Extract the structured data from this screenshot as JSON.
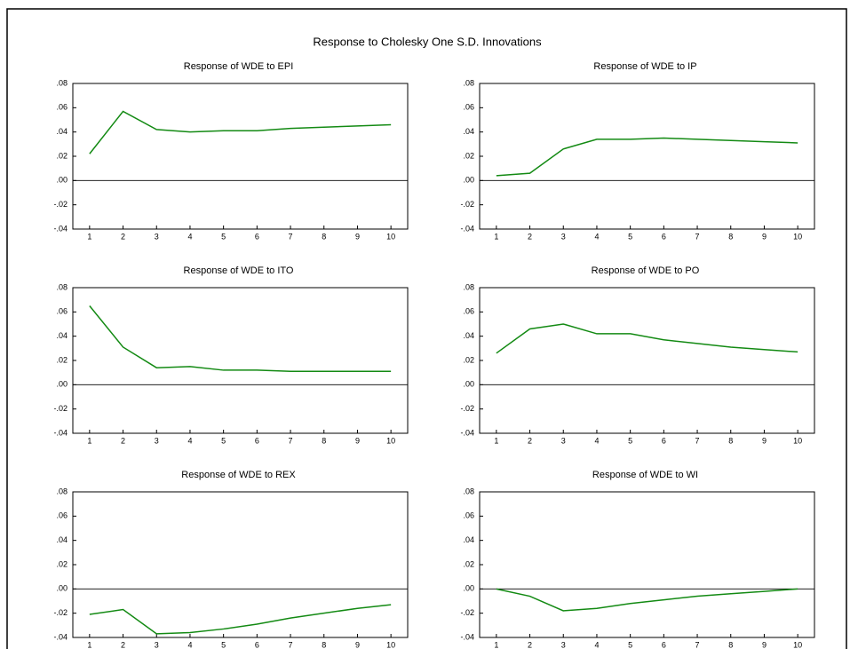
{
  "title": "Response to Cholesky One S.D. Innovations",
  "chart_data": [
    {
      "type": "line",
      "title": "Response of WDE to EPI",
      "x": [
        1,
        2,
        3,
        4,
        5,
        6,
        7,
        8,
        9,
        10
      ],
      "xlim": [
        0.5,
        10.5
      ],
      "xticks": [
        1,
        2,
        3,
        4,
        5,
        6,
        7,
        8,
        9,
        10
      ],
      "values": [
        0.022,
        0.057,
        0.042,
        0.04,
        0.041,
        0.041,
        0.043,
        0.044,
        0.045,
        0.046
      ],
      "color": "#138a13",
      "zeroline": true,
      "ylim": [
        -0.04,
        0.08
      ],
      "yticks": [
        {
          "value": 0.08,
          "label": ".08"
        },
        {
          "value": 0.06,
          "label": ".06"
        },
        {
          "value": 0.04,
          "label": ".04"
        },
        {
          "value": 0.02,
          "label": ".02"
        },
        {
          "value": 0,
          "label": ".00"
        },
        {
          "value": -0.02,
          "label": "-.02"
        },
        {
          "value": -0.04,
          "label": "-.04"
        }
      ]
    },
    {
      "type": "line",
      "title": "Response of WDE to IP",
      "x": [
        1,
        2,
        3,
        4,
        5,
        6,
        7,
        8,
        9,
        10
      ],
      "xlim": [
        0.5,
        10.5
      ],
      "xticks": [
        1,
        2,
        3,
        4,
        5,
        6,
        7,
        8,
        9,
        10
      ],
      "values": [
        0.004,
        0.006,
        0.026,
        0.034,
        0.034,
        0.035,
        0.034,
        0.033,
        0.032,
        0.031
      ],
      "color": "#138a13",
      "zeroline": true,
      "ylim": [
        -0.04,
        0.08
      ],
      "yticks": [
        {
          "value": 0.08,
          "label": ".08"
        },
        {
          "value": 0.06,
          "label": ".06"
        },
        {
          "value": 0.04,
          "label": ".04"
        },
        {
          "value": 0.02,
          "label": ".02"
        },
        {
          "value": 0,
          "label": ".00"
        },
        {
          "value": -0.02,
          "label": "-.02"
        },
        {
          "value": -0.04,
          "label": "-.04"
        }
      ]
    },
    {
      "type": "line",
      "title": "Response of WDE to ITO",
      "x": [
        1,
        2,
        3,
        4,
        5,
        6,
        7,
        8,
        9,
        10
      ],
      "xlim": [
        0.5,
        10.5
      ],
      "xticks": [
        1,
        2,
        3,
        4,
        5,
        6,
        7,
        8,
        9,
        10
      ],
      "values": [
        0.065,
        0.031,
        0.014,
        0.015,
        0.012,
        0.012,
        0.011,
        0.011,
        0.011,
        0.011
      ],
      "color": "#138a13",
      "zeroline": true,
      "ylim": [
        -0.04,
        0.08
      ],
      "yticks": [
        {
          "value": 0.08,
          "label": ".08"
        },
        {
          "value": 0.06,
          "label": ".06"
        },
        {
          "value": 0.04,
          "label": ".04"
        },
        {
          "value": 0.02,
          "label": ".02"
        },
        {
          "value": 0,
          "label": ".00"
        },
        {
          "value": -0.02,
          "label": "-.02"
        },
        {
          "value": -0.04,
          "label": "-.04"
        }
      ]
    },
    {
      "type": "line",
      "title": "Response of WDE to PO",
      "x": [
        1,
        2,
        3,
        4,
        5,
        6,
        7,
        8,
        9,
        10
      ],
      "xlim": [
        0.5,
        10.5
      ],
      "xticks": [
        1,
        2,
        3,
        4,
        5,
        6,
        7,
        8,
        9,
        10
      ],
      "values": [
        0.026,
        0.046,
        0.05,
        0.042,
        0.042,
        0.037,
        0.034,
        0.031,
        0.029,
        0.027
      ],
      "color": "#138a13",
      "zeroline": true,
      "ylim": [
        -0.04,
        0.08
      ],
      "yticks": [
        {
          "value": 0.08,
          "label": ".08"
        },
        {
          "value": 0.06,
          "label": ".06"
        },
        {
          "value": 0.04,
          "label": ".04"
        },
        {
          "value": 0.02,
          "label": ".02"
        },
        {
          "value": 0,
          "label": ".00"
        },
        {
          "value": -0.02,
          "label": "-.02"
        },
        {
          "value": -0.04,
          "label": "-.04"
        }
      ]
    },
    {
      "type": "line",
      "title": "Response of WDE to REX",
      "x": [
        1,
        2,
        3,
        4,
        5,
        6,
        7,
        8,
        9,
        10
      ],
      "xlim": [
        0.5,
        10.5
      ],
      "xticks": [
        1,
        2,
        3,
        4,
        5,
        6,
        7,
        8,
        9,
        10
      ],
      "values": [
        -0.021,
        -0.017,
        -0.037,
        -0.036,
        -0.033,
        -0.029,
        -0.024,
        -0.02,
        -0.016,
        -0.013
      ],
      "color": "#138a13",
      "zeroline": true,
      "ylim": [
        -0.04,
        0.08
      ],
      "yticks": [
        {
          "value": 0.08,
          "label": ".08"
        },
        {
          "value": 0.06,
          "label": ".06"
        },
        {
          "value": 0.04,
          "label": ".04"
        },
        {
          "value": 0.02,
          "label": ".02"
        },
        {
          "value": 0,
          "label": ".00"
        },
        {
          "value": -0.02,
          "label": "-.02"
        },
        {
          "value": -0.04,
          "label": "-.04"
        }
      ]
    },
    {
      "type": "line",
      "title": "Response of WDE to WI",
      "x": [
        1,
        2,
        3,
        4,
        5,
        6,
        7,
        8,
        9,
        10
      ],
      "xlim": [
        0.5,
        10.5
      ],
      "xticks": [
        1,
        2,
        3,
        4,
        5,
        6,
        7,
        8,
        9,
        10
      ],
      "values": [
        0.0,
        -0.006,
        -0.018,
        -0.016,
        -0.012,
        -0.009,
        -0.006,
        -0.004,
        -0.002,
        0.0
      ],
      "color": "#138a13",
      "zeroline": true,
      "ylim": [
        -0.04,
        0.08
      ],
      "yticks": [
        {
          "value": 0.08,
          "label": ".08"
        },
        {
          "value": 0.06,
          "label": ".06"
        },
        {
          "value": 0.04,
          "label": ".04"
        },
        {
          "value": 0.02,
          "label": ".02"
        },
        {
          "value": 0,
          "label": ".00"
        },
        {
          "value": -0.02,
          "label": "-.02"
        },
        {
          "value": -0.04,
          "label": "-.04"
        }
      ]
    }
  ]
}
